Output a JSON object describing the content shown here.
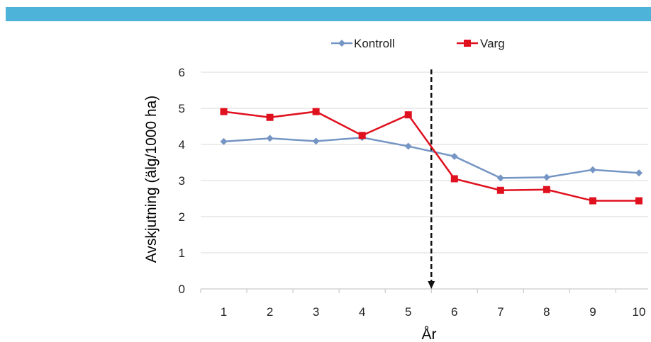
{
  "header": {
    "bar_color": "#4db3d9"
  },
  "chart_data": {
    "type": "line",
    "x": [
      1,
      2,
      3,
      4,
      5,
      6,
      7,
      8,
      9,
      10
    ],
    "series": [
      {
        "name": "Kontroll",
        "color": "#7595c4",
        "marker": "diamond",
        "values": [
          4.08,
          4.17,
          4.09,
          4.19,
          3.95,
          3.67,
          3.07,
          3.09,
          3.3,
          3.21
        ]
      },
      {
        "name": "Varg",
        "color": "#e0111e",
        "marker": "square",
        "values": [
          4.91,
          4.75,
          4.91,
          4.25,
          4.82,
          3.05,
          2.73,
          2.75,
          2.44,
          2.44
        ]
      }
    ],
    "xlabel": "År",
    "ylabel": "Avskjutning (älg/1000 ha)",
    "xticks": [
      "1",
      "2",
      "3",
      "4",
      "5",
      "6",
      "7",
      "8",
      "9",
      "10"
    ],
    "yticks": [
      "0",
      "1",
      "2",
      "3",
      "4",
      "5",
      "6"
    ],
    "ylim": [
      0,
      6
    ],
    "grid": true,
    "legend_position": "top",
    "annotation": {
      "type": "dashed-vertical-arrow",
      "x_between": [
        5,
        6
      ],
      "color": "#111111"
    }
  }
}
